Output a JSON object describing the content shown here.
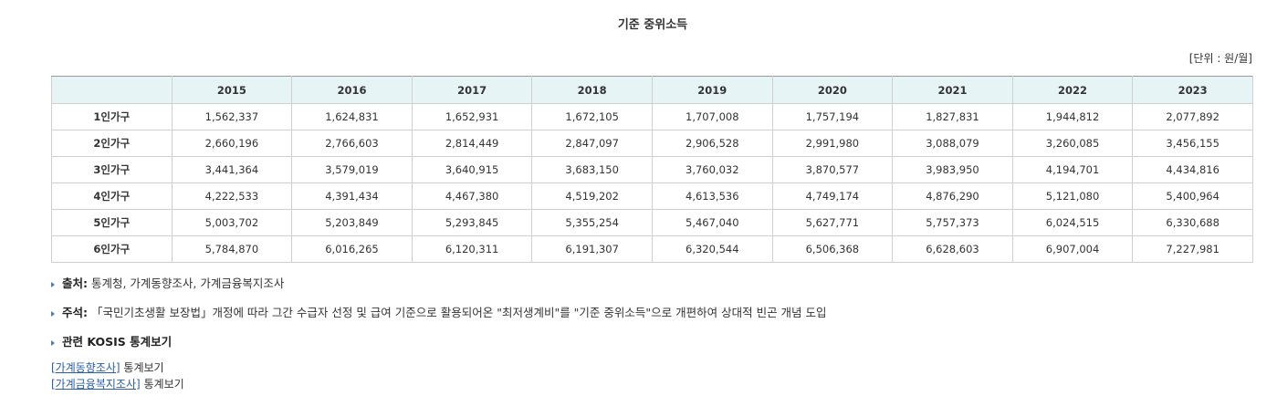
{
  "header": {
    "title": "기준 중위소득",
    "unit": "[단위 : 원/월]"
  },
  "table": {
    "columns": [
      "2015",
      "2016",
      "2017",
      "2018",
      "2019",
      "2020",
      "2021",
      "2022",
      "2023"
    ],
    "rows": [
      [
        "1인가구",
        "1,562,337",
        "1,624,831",
        "1,652,931",
        "1,672,105",
        "1,707,008",
        "1,757,194",
        "1,827,831",
        "1,944,812",
        "2,077,892"
      ],
      [
        "2인가구",
        "2,660,196",
        "2,766,603",
        "2,814,449",
        "2,847,097",
        "2,906,528",
        "2,991,980",
        "3,088,079",
        "3,260,085",
        "3,456,155"
      ],
      [
        "3인가구",
        "3,441,364",
        "3,579,019",
        "3,640,915",
        "3,683,150",
        "3,760,032",
        "3,870,577",
        "3,983,950",
        "4,194,701",
        "4,434,816"
      ],
      [
        "4인가구",
        "4,222,533",
        "4,391,434",
        "4,467,380",
        "4,519,202",
        "4,613,536",
        "4,749,174",
        "4,876,290",
        "5,121,080",
        "5,400,964"
      ],
      [
        "5인가구",
        "5,003,702",
        "5,203,849",
        "5,293,845",
        "5,355,254",
        "5,467,040",
        "5,627,771",
        "5,757,373",
        "6,024,515",
        "6,330,688"
      ],
      [
        "6인가구",
        "5,784,870",
        "6,016,265",
        "6,120,311",
        "6,191,307",
        "6,320,544",
        "6,506,368",
        "6,628,603",
        "6,907,004",
        "7,227,981"
      ]
    ]
  },
  "notes": [
    {
      "label": "출처:",
      "text": " 통계청, 가계동향조사, 가계금융복지조사"
    },
    {
      "label": "주석:",
      "text": " 「국민기초생활 보장법」개정에 따라 그간 수급자 선정 및 급여 기준으로 활용되어온 \"최저생계비\"를 \"기준 중위소득\"으로 개편하여 상대적 빈곤 개념 도입"
    }
  ],
  "related": {
    "title": "관련 KOSIS 통계보기",
    "links": [
      {
        "link": "[가계동향조사]",
        "text": " 통계보기"
      },
      {
        "link": "[가계금융복지조사]",
        "text": " 통계보기"
      }
    ]
  }
}
